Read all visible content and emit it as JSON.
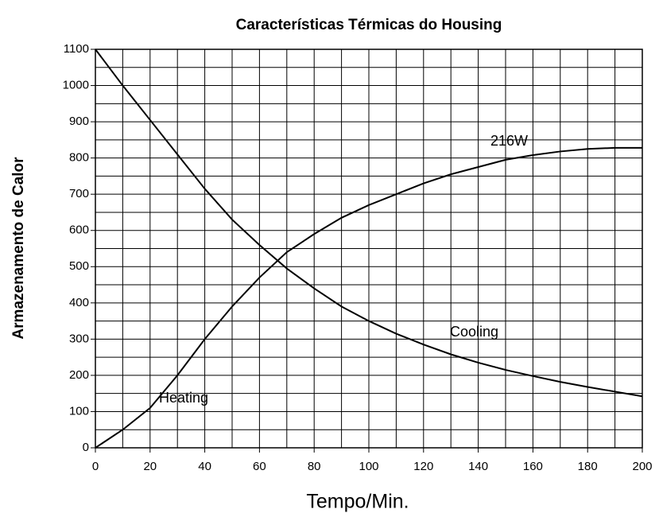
{
  "chart_data": {
    "type": "line",
    "title": "Características Térmicas do Housing",
    "x_label": "Tempo/Min.",
    "y_label": "Armazenamento de Calor",
    "annotations": [
      "216W"
    ],
    "x": [
      0,
      10,
      20,
      30,
      40,
      50,
      60,
      70,
      80,
      90,
      100,
      110,
      120,
      130,
      140,
      150,
      160,
      170,
      180,
      190,
      200
    ],
    "series": [
      {
        "name": "Heating",
        "color": "#000000",
        "values": [
          0,
          50,
          110,
          200,
          300,
          390,
          470,
          540,
          590,
          635,
          670,
          700,
          730,
          755,
          775,
          795,
          808,
          818,
          825,
          828,
          828
        ]
      },
      {
        "name": "Cooling",
        "color": "#000000",
        "values": [
          1100,
          1000,
          905,
          810,
          715,
          630,
          560,
          495,
          440,
          390,
          350,
          315,
          285,
          258,
          235,
          215,
          198,
          182,
          168,
          155,
          142
        ]
      }
    ],
    "xlim": [
      0,
      200
    ],
    "xticks": [
      0,
      20,
      40,
      60,
      80,
      100,
      120,
      140,
      160,
      180,
      200
    ],
    "ylim": [
      0,
      1100
    ],
    "yticks": [
      0,
      100,
      200,
      300,
      400,
      500,
      600,
      700,
      800,
      900,
      1000,
      1100
    ],
    "grid": true
  }
}
